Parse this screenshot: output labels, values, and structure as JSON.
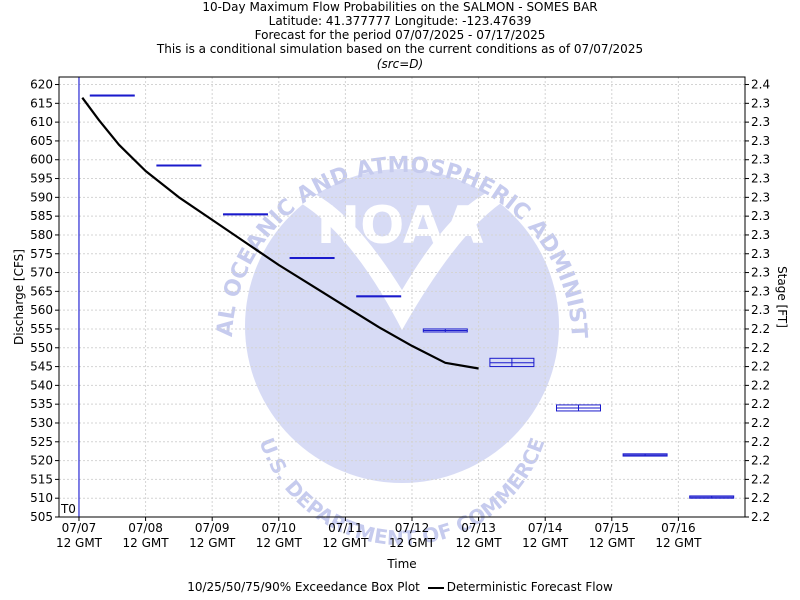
{
  "titles": [
    "10-Day Maximum Flow Probabilities on the SALMON - SOMES BAR",
    "Latitude: 41.377777 Longitude: -123.47639",
    "Forecast for the period 07/07/2025 - 07/17/2025",
    "This is a conditional simulation based on the current conditions as of 07/07/2025"
  ],
  "source_note": "(src=D)",
  "watermark": {
    "logo_text": "NOAA",
    "ring_top": "NATIONAL OCEANIC AND ATMOSPHERIC ADMINISTRATION",
    "ring_bottom": "U.S. DEPARTMENT OF COMMERCE"
  },
  "legend": {
    "box_label": "10/25/50/75/90% Exceedance Box Plot",
    "line_label": "Deterministic Forecast Flow"
  },
  "colors": {
    "box": "#1a1acc",
    "forecast": "#000000",
    "t0": "#0000cc",
    "grid": "#d4d4d4",
    "watermark": "#c8cdf0"
  },
  "chart_data": {
    "type": "line",
    "xlabel": "Time",
    "ylabel": "Discharge [CFS]",
    "y2label": "Stage [FT]",
    "t0_label": "T0",
    "x_ticks": [
      "07/07",
      "07/08",
      "07/09",
      "07/10",
      "07/11",
      "07/12",
      "07/13",
      "07/14",
      "07/15",
      "07/16"
    ],
    "x_tick_sub": "12 GMT",
    "xlim": [
      -0.3,
      10.0
    ],
    "ylim": [
      505,
      622
    ],
    "y_ticks": [
      505,
      510,
      515,
      520,
      525,
      530,
      535,
      540,
      545,
      550,
      555,
      560,
      565,
      570,
      575,
      580,
      585,
      590,
      595,
      600,
      605,
      610,
      615,
      620
    ],
    "y2_ticks": [
      "2.2",
      "2.2",
      "2.2",
      "2.2",
      "2.2",
      "2.2",
      "2.2",
      "2.2",
      "2.2",
      "2.2",
      "2.2",
      "2.3",
      "2.3",
      "2.3",
      "2.3",
      "2.3",
      "2.3",
      "2.3",
      "2.3",
      "2.3",
      "2.3",
      "2.3",
      "2.3",
      "2.4"
    ],
    "grid": true,
    "t0_x": 0.0,
    "series": [
      {
        "name": "Deterministic Forecast Flow",
        "x": [
          0.05,
          0.3,
          0.6,
          1.0,
          1.5,
          2.0,
          2.5,
          3.0,
          3.5,
          4.0,
          4.5,
          5.0,
          5.5,
          6.0
        ],
        "y": [
          616.5,
          610.5,
          604,
          597,
          590,
          584,
          578,
          572,
          566.5,
          561,
          555.5,
          550.5,
          546,
          544.5
        ]
      }
    ],
    "box_plots": [
      {
        "x": 0.5,
        "p10": 617.2,
        "p25": 617.2,
        "p50": 617.2,
        "p75": 617.2,
        "p90": 617.2
      },
      {
        "x": 1.5,
        "p10": 598.6,
        "p25": 598.6,
        "p50": 598.6,
        "p75": 598.6,
        "p90": 598.6
      },
      {
        "x": 2.5,
        "p10": 585.6,
        "p25": 585.6,
        "p50": 585.6,
        "p75": 585.6,
        "p90": 585.6
      },
      {
        "x": 3.5,
        "p10": 574.0,
        "p25": 574.0,
        "p50": 574.0,
        "p75": 574.0,
        "p90": 574.0
      },
      {
        "x": 4.5,
        "p10": 563.8,
        "p25": 563.8,
        "p50": 563.8,
        "p75": 563.8,
        "p90": 563.8
      },
      {
        "x": 5.5,
        "p10": 554.2,
        "p25": 554.2,
        "p50": 554.6,
        "p75": 555.0,
        "p90": 555.0
      },
      {
        "x": 6.5,
        "p10": 545.0,
        "p25": 545.0,
        "p50": 546.0,
        "p75": 547.2,
        "p90": 547.2
      },
      {
        "x": 7.5,
        "p10": 533.2,
        "p25": 533.2,
        "p50": 534.0,
        "p75": 534.8,
        "p90": 534.8
      },
      {
        "x": 8.5,
        "p10": 521.2,
        "p25": 521.2,
        "p50": 521.5,
        "p75": 521.8,
        "p90": 521.8
      },
      {
        "x": 9.5,
        "p10": 510.0,
        "p25": 510.0,
        "p50": 510.3,
        "p75": 510.6,
        "p90": 510.6
      }
    ]
  }
}
